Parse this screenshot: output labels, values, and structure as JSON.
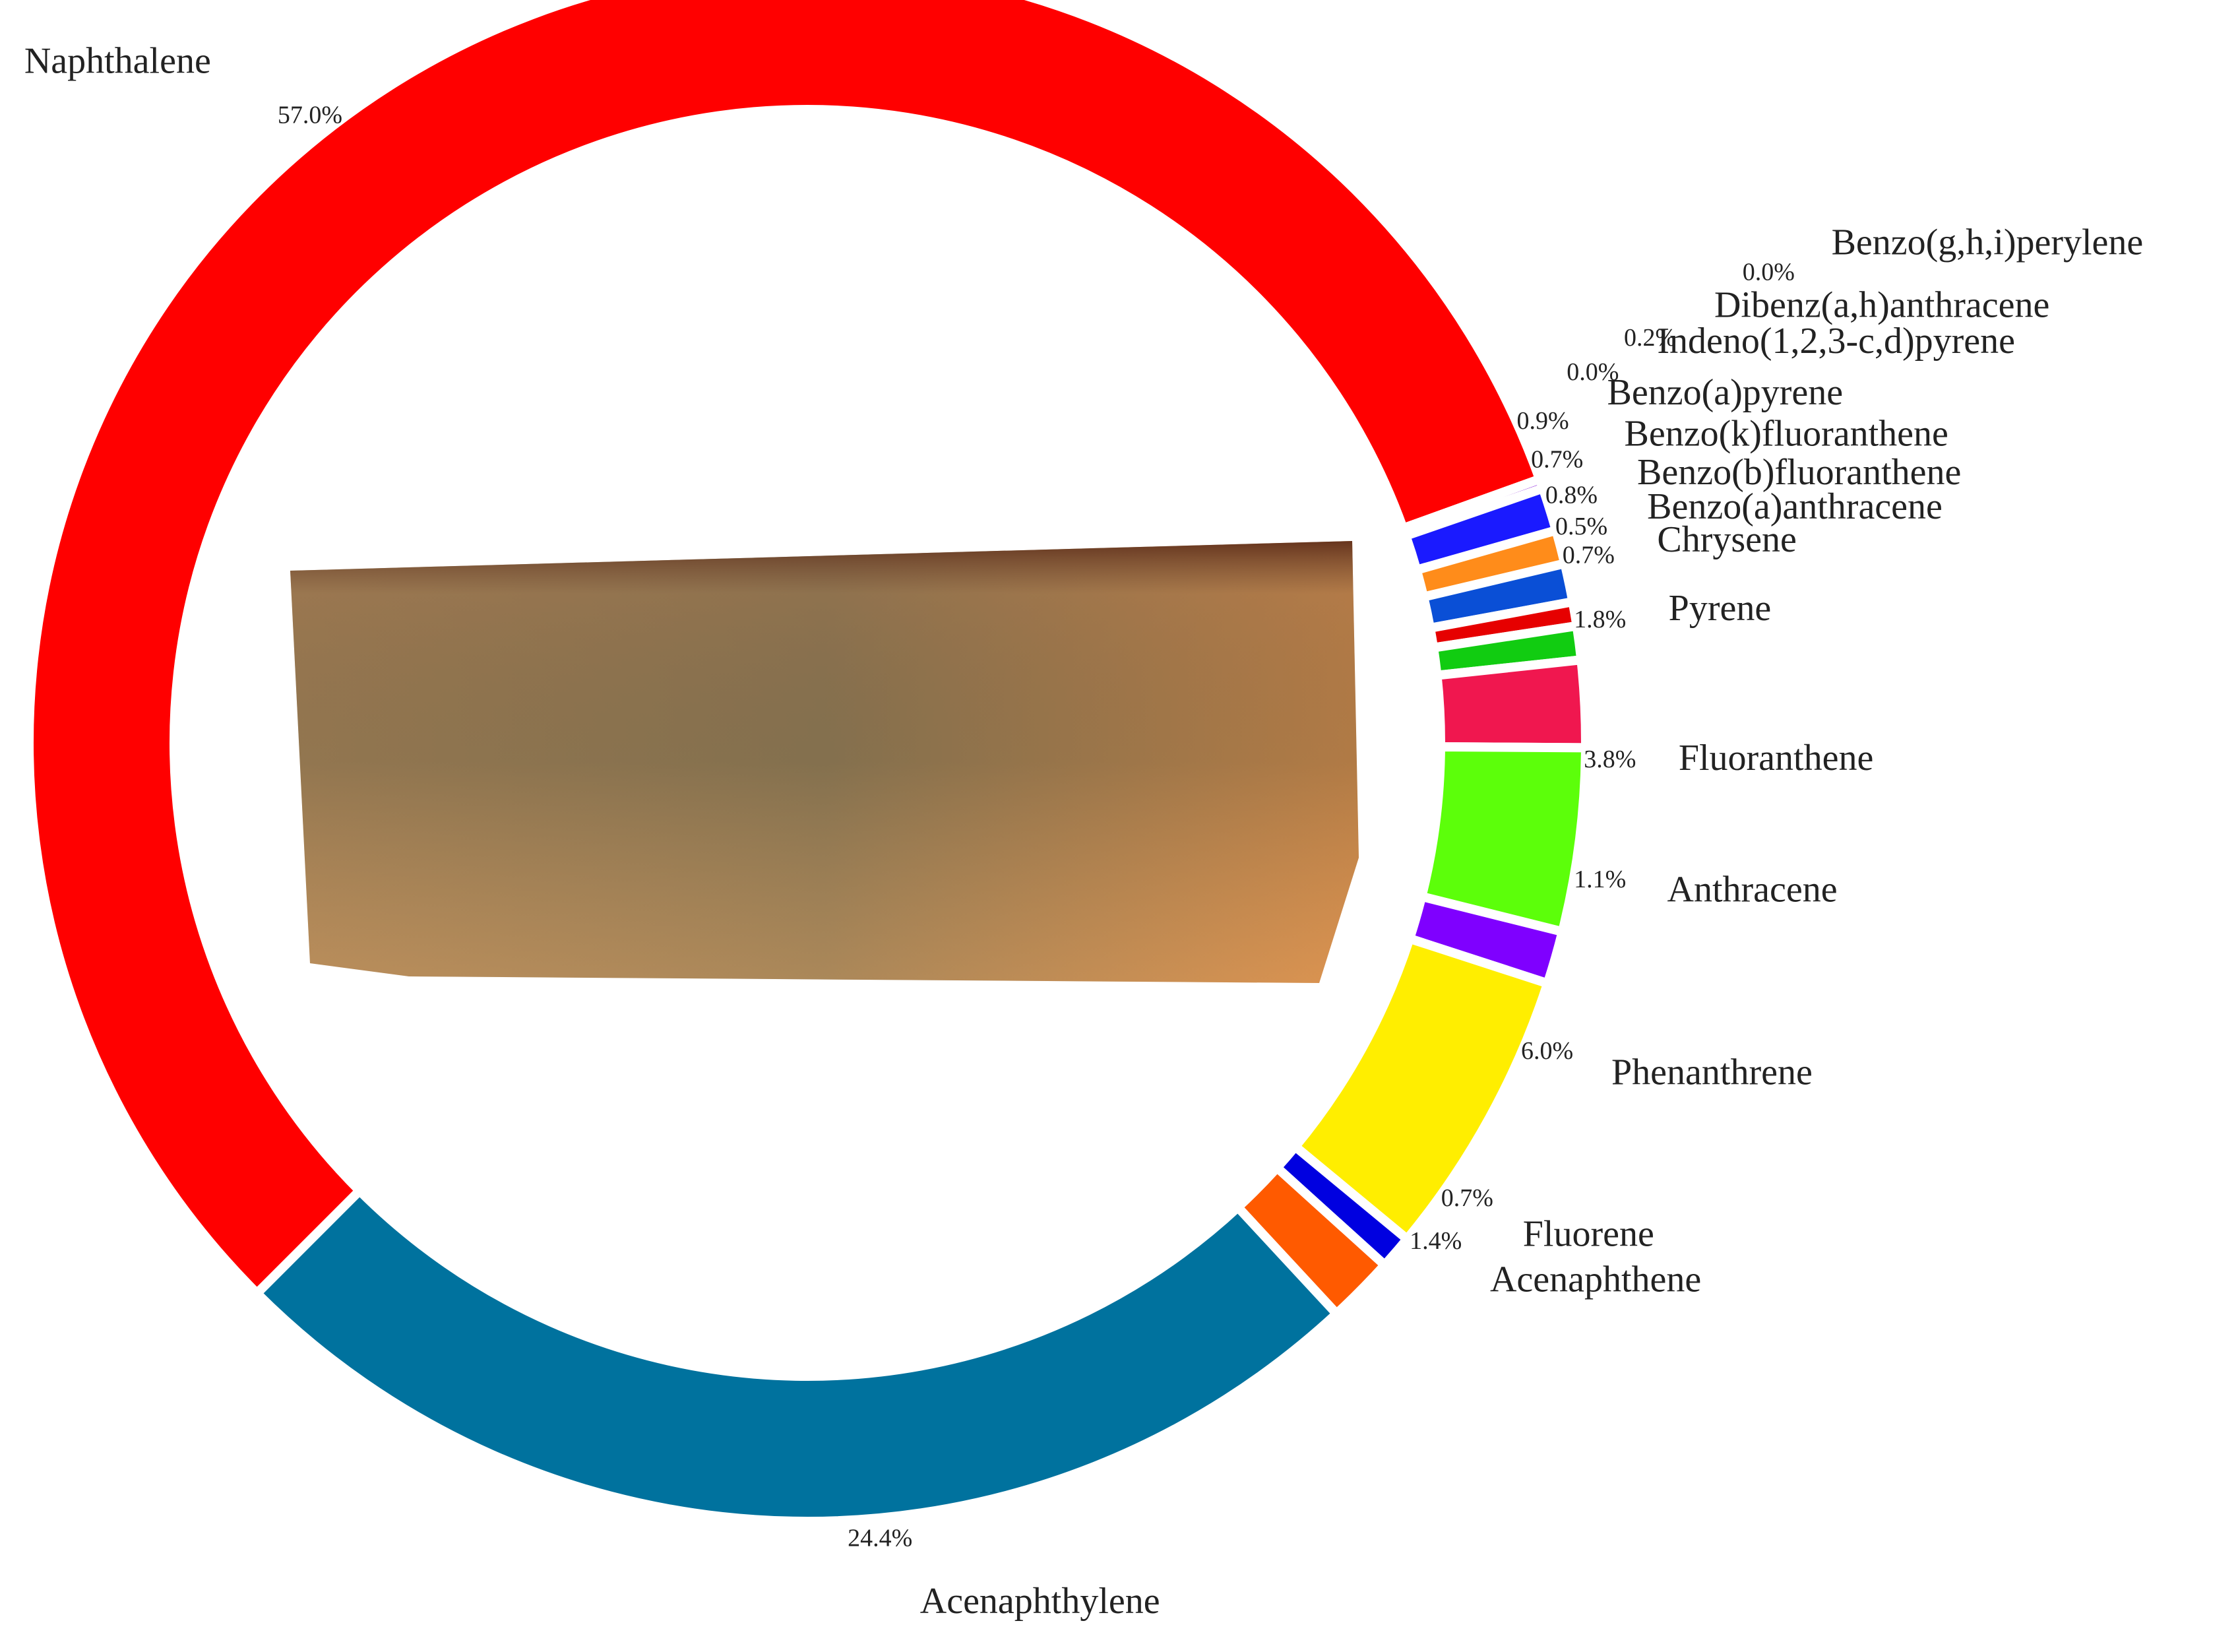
{
  "chart_data": {
    "type": "donut",
    "categories": [
      "Naphthalene",
      "Benzo(g,h,i)perylene",
      "Dibenz(a,h)anthracene",
      "Indeno(1,2,3-c,d)pyrene",
      "Benzo(a)pyrene",
      "Benzo(k)fluoranthene",
      "Benzo(b)fluoranthene",
      "Benzo(a)anthracene",
      "Chrysene",
      "Pyrene",
      "Fluoranthene",
      "Anthracene",
      "Phenanthrene",
      "Fluorene",
      "Acenaphthene",
      "Acenaphthylene"
    ],
    "values": [
      57.0,
      0.0,
      0.2,
      0.0,
      0.9,
      0.7,
      0.8,
      0.5,
      0.7,
      1.8,
      3.8,
      1.1,
      6.0,
      0.7,
      1.4,
      24.4
    ],
    "value_labels": [
      "57.0%",
      "0.0%",
      "0.2%",
      "0.0%",
      "0.9%",
      "0.7%",
      "0.8%",
      "0.5%",
      "0.7%",
      "1.8%",
      "3.8%",
      "1.1%",
      "6.0%",
      "0.7%",
      "1.4%",
      "24.4%"
    ],
    "colors": [
      "#ff0000",
      "#90ee90",
      "#8b1fd9",
      "#b07ad8",
      "#1a1aff",
      "#ff8c1a",
      "#0a4fd6",
      "#e60000",
      "#11cc11",
      "#f0174f",
      "#5cff0a",
      "#7f00ff",
      "#ffee00",
      "#0000e0",
      "#ff5a00",
      "#00729e"
    ]
  }
}
